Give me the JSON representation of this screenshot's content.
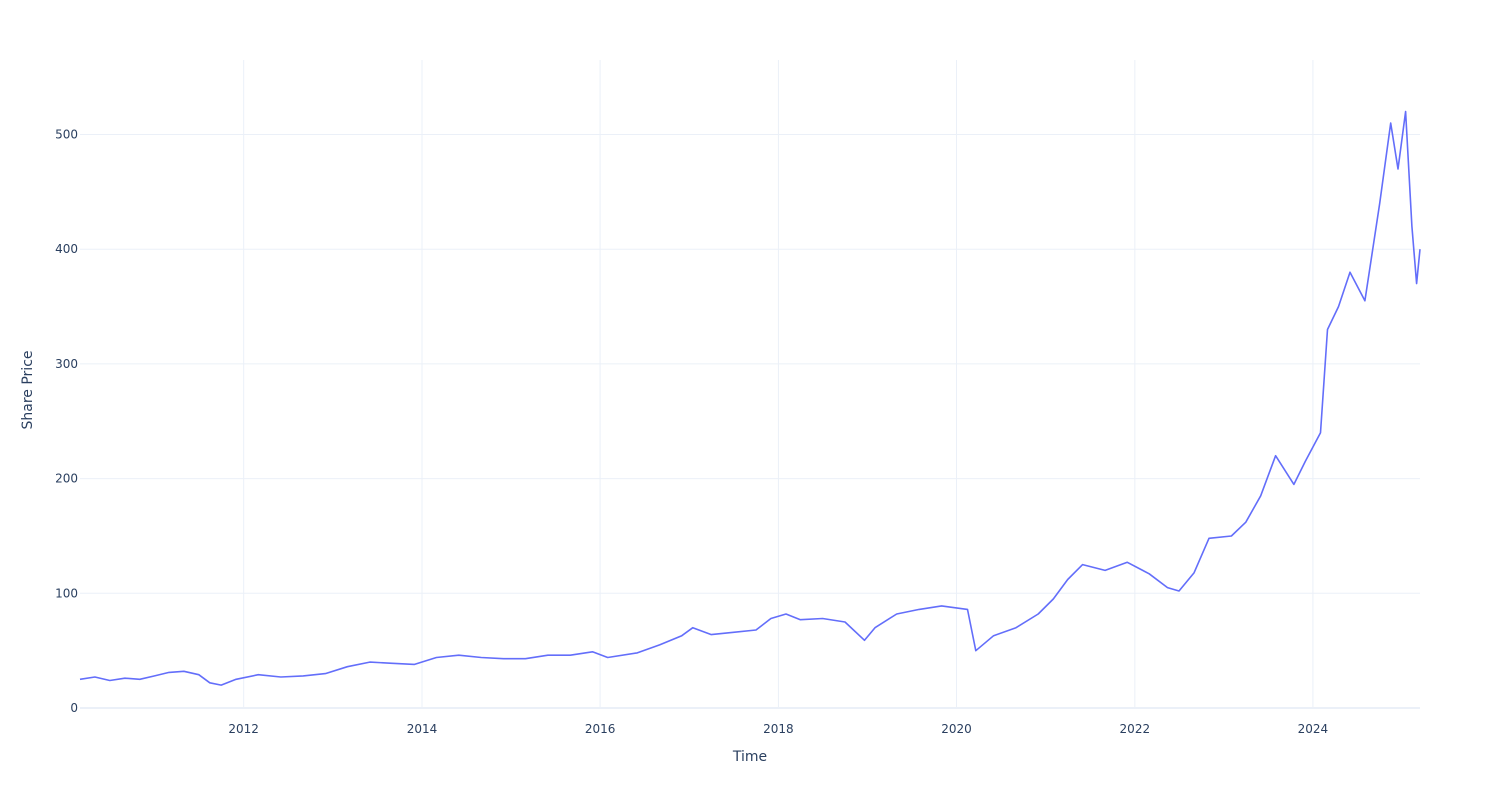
{
  "chart_data": {
    "type": "line",
    "title": "",
    "xlabel": "Time",
    "ylabel": "Share Price",
    "x_range": [
      "2010-03-01",
      "2025-03-15"
    ],
    "y_range": [
      0,
      565
    ],
    "x_ticks": [
      {
        "value": "2012-01-01",
        "label": "2012"
      },
      {
        "value": "2014-01-01",
        "label": "2014"
      },
      {
        "value": "2016-01-01",
        "label": "2016"
      },
      {
        "value": "2018-01-01",
        "label": "2018"
      },
      {
        "value": "2020-01-01",
        "label": "2020"
      },
      {
        "value": "2022-01-01",
        "label": "2022"
      },
      {
        "value": "2024-01-01",
        "label": "2024"
      }
    ],
    "y_ticks": [
      0,
      100,
      200,
      300,
      400,
      500
    ],
    "grid": true,
    "colors": {
      "series": "#636efa",
      "grid": "#ebf0f8",
      "text": "#2a3f5f"
    },
    "series": [
      {
        "color": "#636efa",
        "points": [
          [
            "2010-03-01",
            25
          ],
          [
            "2010-05-01",
            27
          ],
          [
            "2010-07-01",
            24
          ],
          [
            "2010-09-01",
            26
          ],
          [
            "2010-11-01",
            25
          ],
          [
            "2011-01-01",
            28
          ],
          [
            "2011-03-01",
            31
          ],
          [
            "2011-05-01",
            32
          ],
          [
            "2011-07-01",
            29
          ],
          [
            "2011-08-15",
            22
          ],
          [
            "2011-10-01",
            20
          ],
          [
            "2011-12-01",
            25
          ],
          [
            "2012-03-01",
            29
          ],
          [
            "2012-06-01",
            27
          ],
          [
            "2012-09-01",
            28
          ],
          [
            "2012-12-01",
            30
          ],
          [
            "2013-03-01",
            36
          ],
          [
            "2013-06-01",
            40
          ],
          [
            "2013-09-01",
            39
          ],
          [
            "2013-12-01",
            38
          ],
          [
            "2014-03-01",
            44
          ],
          [
            "2014-06-01",
            46
          ],
          [
            "2014-09-01",
            44
          ],
          [
            "2014-12-01",
            43
          ],
          [
            "2015-03-01",
            43
          ],
          [
            "2015-06-01",
            46
          ],
          [
            "2015-09-01",
            46
          ],
          [
            "2015-12-01",
            49
          ],
          [
            "2016-02-01",
            44
          ],
          [
            "2016-06-01",
            48
          ],
          [
            "2016-09-01",
            55
          ],
          [
            "2016-12-01",
            63
          ],
          [
            "2017-01-15",
            70
          ],
          [
            "2017-04-01",
            64
          ],
          [
            "2017-07-01",
            66
          ],
          [
            "2017-10-01",
            68
          ],
          [
            "2017-12-01",
            78
          ],
          [
            "2018-02-01",
            82
          ],
          [
            "2018-04-01",
            77
          ],
          [
            "2018-07-01",
            78
          ],
          [
            "2018-10-01",
            75
          ],
          [
            "2018-12-20",
            59
          ],
          [
            "2019-02-01",
            70
          ],
          [
            "2019-05-01",
            82
          ],
          [
            "2019-08-01",
            86
          ],
          [
            "2019-11-01",
            89
          ],
          [
            "2020-02-15",
            86
          ],
          [
            "2020-03-20",
            50
          ],
          [
            "2020-06-01",
            63
          ],
          [
            "2020-09-01",
            70
          ],
          [
            "2020-12-01",
            82
          ],
          [
            "2021-02-01",
            95
          ],
          [
            "2021-04-01",
            112
          ],
          [
            "2021-06-01",
            125
          ],
          [
            "2021-09-01",
            120
          ],
          [
            "2021-12-01",
            127
          ],
          [
            "2022-03-01",
            117
          ],
          [
            "2022-05-15",
            105
          ],
          [
            "2022-07-01",
            102
          ],
          [
            "2022-09-01",
            118
          ],
          [
            "2022-11-01",
            148
          ],
          [
            "2023-02-01",
            150
          ],
          [
            "2023-04-01",
            162
          ],
          [
            "2023-06-01",
            185
          ],
          [
            "2023-08-01",
            220
          ],
          [
            "2023-10-15",
            195
          ],
          [
            "2023-12-01",
            215
          ],
          [
            "2024-02-01",
            240
          ],
          [
            "2024-03-01",
            330
          ],
          [
            "2024-04-15",
            350
          ],
          [
            "2024-06-01",
            380
          ],
          [
            "2024-08-01",
            355
          ],
          [
            "2024-10-01",
            440
          ],
          [
            "2024-11-15",
            510
          ],
          [
            "2024-12-15",
            470
          ],
          [
            "2025-01-15",
            520
          ],
          [
            "2025-02-10",
            420
          ],
          [
            "2025-03-01",
            370
          ],
          [
            "2025-03-15",
            400
          ]
        ]
      }
    ]
  }
}
